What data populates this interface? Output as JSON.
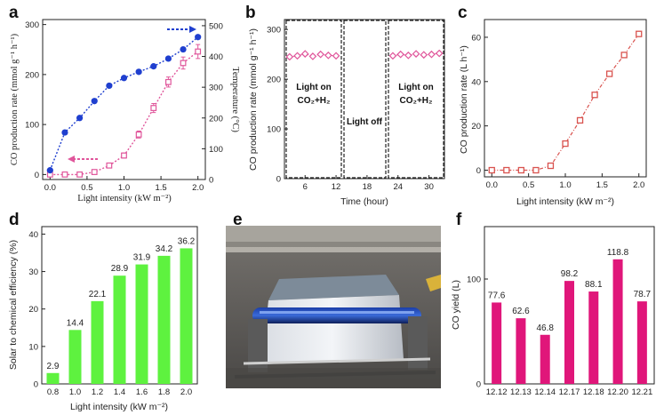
{
  "colors": {
    "blue": "#1f3fcf",
    "pink": "#e0569b",
    "red": "#d9534f",
    "green": "#5ef23f",
    "magenta": "#e0167a"
  },
  "chart_data": [
    {
      "id": "a",
      "type": "line",
      "panel": "a",
      "xlabel": "Light intensity (kW m⁻²)",
      "ylabel": "CO production rate (mmol g⁻¹ h⁻¹)",
      "ylabel2": "Temperature (°C)",
      "xlim": [
        -0.1,
        2.1
      ],
      "ylim": [
        -10,
        310
      ],
      "y2lim": [
        0,
        520
      ],
      "xticks": [
        "0.0",
        "0.5",
        "1.0",
        "1.5",
        "2.0"
      ],
      "yticks": [
        "0",
        "100",
        "200",
        "300"
      ],
      "y2ticks": [
        "0",
        "100",
        "200",
        "300",
        "400",
        "500"
      ],
      "series": [
        {
          "axis": "left",
          "color": "pink",
          "marker": "open-square",
          "x": [
            0,
            0.2,
            0.4,
            0.6,
            0.8,
            1.0,
            1.2,
            1.4,
            1.6,
            1.8,
            2.0
          ],
          "y": [
            0,
            0,
            0,
            5,
            18,
            38,
            80,
            133,
            185,
            223,
            246
          ],
          "err": [
            0,
            0,
            0,
            2,
            3,
            5,
            7,
            9,
            10,
            12,
            14
          ]
        },
        {
          "axis": "right",
          "color": "blue",
          "marker": "filled-circle",
          "x": [
            0,
            0.2,
            0.4,
            0.6,
            0.8,
            1.0,
            1.2,
            1.4,
            1.6,
            1.8,
            2.0
          ],
          "y": [
            30,
            153,
            200,
            255,
            305,
            330,
            350,
            368,
            393,
            423,
            463
          ]
        }
      ]
    },
    {
      "id": "b",
      "type": "scatter",
      "panel": "b",
      "xlabel": "Time (hour)",
      "ylabel": "CO production rate (mmol g⁻¹ h⁻¹)",
      "xlim": [
        2,
        33
      ],
      "ylim": [
        0,
        320
      ],
      "xticks": [
        "6",
        "12",
        "18",
        "24",
        "30"
      ],
      "yticks": [
        "0",
        "100",
        "200",
        "300"
      ],
      "annotations": {
        "light_on": "Light on",
        "gas": "CO₂+H₂",
        "light_off": "Light off"
      },
      "series": [
        {
          "color": "pink",
          "marker": "diamond",
          "x": [
            3,
            4.5,
            6,
            7.5,
            9,
            10.5,
            12,
            23,
            24.5,
            26,
            27.5,
            29,
            30.5,
            32
          ],
          "y": [
            245,
            247,
            251,
            246,
            250,
            248,
            247,
            247,
            250,
            248,
            251,
            249,
            250,
            252
          ]
        }
      ]
    },
    {
      "id": "c",
      "type": "line",
      "panel": "c",
      "xlabel": "Light intensity (kW m⁻²)",
      "ylabel": "CO production rate (L h⁻¹)",
      "xlim": [
        -0.1,
        2.1
      ],
      "ylim": [
        -3,
        68
      ],
      "xticks": [
        "0.0",
        "0.5",
        "1.0",
        "1.5",
        "2.0"
      ],
      "yticks": [
        "0",
        "20",
        "40",
        "60"
      ],
      "series": [
        {
          "color": "red",
          "marker": "open-square",
          "x": [
            0,
            0.2,
            0.4,
            0.6,
            0.8,
            1.0,
            1.2,
            1.4,
            1.6,
            1.8,
            2.0
          ],
          "y": [
            0,
            0,
            0,
            0,
            2,
            12,
            22.5,
            34,
            43.5,
            52,
            61.5
          ]
        }
      ]
    },
    {
      "id": "d",
      "type": "bar",
      "panel": "d",
      "xlabel": "Light intensity (kW m⁻²)",
      "ylabel": "Solar to chemical efficiency (%)",
      "ylim": [
        0,
        42
      ],
      "categories": [
        "0.8",
        "1.0",
        "1.2",
        "1.4",
        "1.6",
        "1.8",
        "2.0"
      ],
      "values": [
        2.9,
        14.4,
        22.1,
        28.9,
        31.9,
        34.2,
        36.2
      ],
      "value_labels": [
        "2.9",
        "14.4",
        "22.1",
        "28.9",
        "31.9",
        "34.2",
        "36.2"
      ],
      "yticks": [
        "0",
        "10",
        "20",
        "30",
        "40"
      ]
    },
    {
      "id": "f",
      "type": "bar",
      "panel": "f",
      "ylabel": "CO yield (L)",
      "ylim": [
        0,
        150
      ],
      "categories": [
        "12.12",
        "12.13",
        "12.14",
        "12.17",
        "12.18",
        "12.20",
        "12.21"
      ],
      "values": [
        77.6,
        62.6,
        46.8,
        98.2,
        88.1,
        118.8,
        78.7
      ],
      "value_labels": [
        "77.6",
        "62.6",
        "46.8",
        "98.2",
        "88.1",
        "118.8",
        "78.7"
      ],
      "yticks": [
        "0",
        "100"
      ]
    }
  ],
  "panels": {
    "a": "a",
    "b": "b",
    "c": "c",
    "d": "d",
    "e": "e",
    "f": "f"
  }
}
